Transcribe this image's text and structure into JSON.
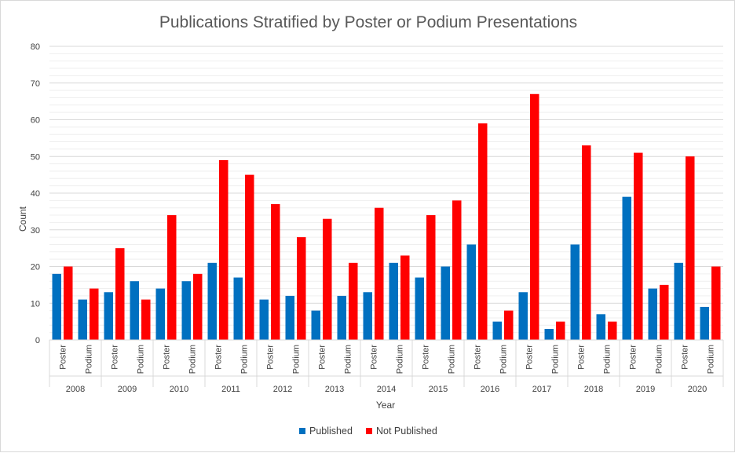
{
  "chart_data": {
    "type": "bar",
    "title": "Publications Stratified by Poster or Podium Presentations",
    "xlabel": "Year",
    "ylabel": "Count",
    "ylim": [
      0,
      80
    ],
    "y_major_ticks": [
      0,
      10,
      20,
      30,
      40,
      50,
      60,
      70,
      80
    ],
    "y_minor_step": 2,
    "grid": true,
    "legend_position": "bottom-center",
    "years": [
      "2008",
      "2009",
      "2010",
      "2011",
      "2012",
      "2013",
      "2014",
      "2015",
      "2016",
      "2017",
      "2018",
      "2019",
      "2020"
    ],
    "subcategory_labels": [
      "Poster",
      "Podium"
    ],
    "categories": [
      "2008 Poster",
      "2008 Podium",
      "2009 Poster",
      "2009 Podium",
      "2010 Poster",
      "2010 Podium",
      "2011 Poster",
      "2011 Podium",
      "2012 Poster",
      "2012 Podium",
      "2013 Poster",
      "2013 Podium",
      "2014 Poster",
      "2014 Podium",
      "2015 Poster",
      "2015 Podium",
      "2016 Poster",
      "2016 Podium",
      "2017 Poster",
      "2017 Podium",
      "2018 Poster",
      "2018 Podium",
      "2019 Poster",
      "2019 Podium",
      "2020 Poster",
      "2020 Podium"
    ],
    "series": [
      {
        "name": "Published",
        "color": "#0070C0",
        "values": [
          18,
          11,
          13,
          16,
          14,
          16,
          21,
          17,
          11,
          12,
          8,
          12,
          13,
          21,
          17,
          20,
          26,
          5,
          13,
          3,
          26,
          7,
          39,
          14,
          21,
          9
        ]
      },
      {
        "name": "Not Published",
        "color": "#FF0000",
        "values": [
          20,
          14,
          25,
          11,
          34,
          18,
          49,
          45,
          37,
          28,
          33,
          21,
          36,
          23,
          34,
          38,
          59,
          8,
          67,
          5,
          53,
          5,
          51,
          15,
          50,
          20
        ]
      }
    ]
  }
}
